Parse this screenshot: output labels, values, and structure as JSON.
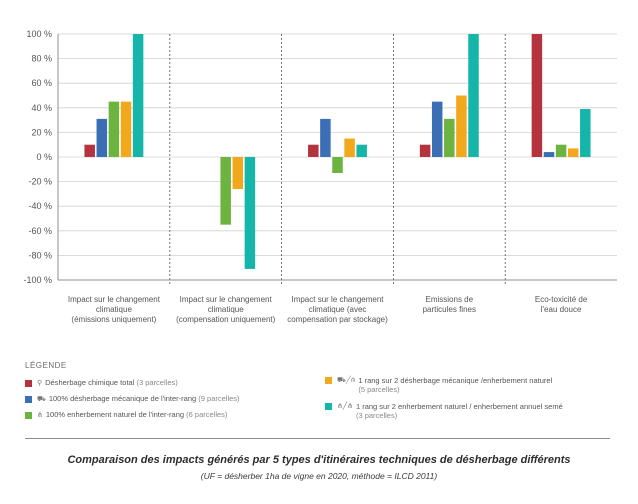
{
  "chart_data": {
    "type": "bar",
    "categories": [
      [
        "Impact sur le changement",
        "climatique",
        "(émissions uniquement)"
      ],
      [
        "Impact sur le changement",
        "climatique",
        "(compensation uniquement)"
      ],
      [
        "Impact sur le changement",
        "climatique (avec",
        "compensation par stockage)"
      ],
      [
        "Emissions de",
        "particules fines"
      ],
      [
        "Eco-toxicité de",
        "l'eau douce"
      ]
    ],
    "series": [
      {
        "name": "Désherbage chimique total",
        "note": "(3 parcelles)",
        "color": "#b5333d",
        "values": [
          10,
          0,
          10,
          10,
          100
        ]
      },
      {
        "name": "100% désherbage mécanique de l'inter-rang",
        "note": "(9 parcelles)",
        "color": "#3a6fb5",
        "values": [
          31,
          0,
          31,
          45,
          4
        ]
      },
      {
        "name": "100% enherbement naturel de l'inter-rang",
        "note": "(6 parcelles)",
        "color": "#6db33f",
        "values": [
          45,
          -55,
          -13,
          31,
          10
        ]
      },
      {
        "name": "1 rang sur 2 désherbage mécanique /enherbement naturel",
        "note": "(5 parcelles)",
        "color": "#f2a81d",
        "values": [
          45,
          -26,
          15,
          50,
          7
        ]
      },
      {
        "name": "1 rang sur 2 enherbement naturel / enherbement annuel semé",
        "note": "(3 parcelles)",
        "color": "#16b5aa",
        "values": [
          100,
          -91,
          10,
          100,
          39
        ]
      }
    ],
    "yticks": [
      "100 %",
      "80 %",
      "60 %",
      "40 %",
      "20 %",
      "0 %",
      "-20 %",
      "-40 %",
      "-60 %",
      "-80 %",
      "-100 %"
    ],
    "ylim": [
      -100,
      100
    ],
    "grid": true
  },
  "legend": {
    "title": "LÉGENDE",
    "icons": [
      "sprayer-icon",
      "tractor-icon",
      "grass-icon",
      "tractor-slash-grass-icon",
      "grass-slash-seed-icon"
    ]
  },
  "caption": {
    "title": "Comparaison des impacts générés par 5 types d'itinéraires techniques de désherbage différents",
    "subtitle": "(UF = désherber 1ha de vigne en 2020, méthode = ILCD 2011)"
  }
}
